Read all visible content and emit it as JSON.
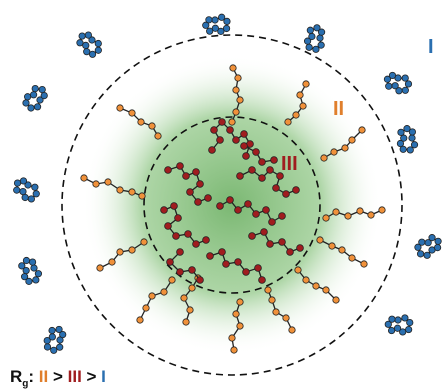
{
  "labels": {
    "outer": "I",
    "middle": "II",
    "inner": "III"
  },
  "legend": {
    "symbol": "R",
    "subscript": "g",
    "colon": ":",
    "first": "II",
    "gt1": " > ",
    "second": "III",
    "gt2": " > ",
    "third": "I"
  },
  "colors": {
    "blue_bead": "#2a6fb0",
    "orange_bead": "#f0913a",
    "red_bead": "#a01d1f",
    "green_core": "#4fa044",
    "dashed_circle": "#111111"
  }
}
